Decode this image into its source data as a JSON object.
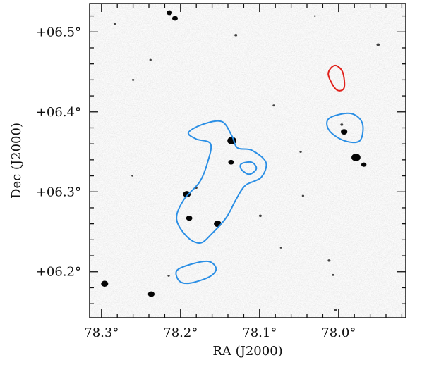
{
  "chart_data": {
    "type": "astronomical-image",
    "xlabel": "RA (J2000)",
    "ylabel": "Dec (J2000)",
    "xlim": [
      78.315,
      77.915
    ],
    "ylim": [
      0.1425,
      0.5355
    ],
    "x_ticks": [
      {
        "value": 78.3,
        "label": "78.3°"
      },
      {
        "value": 78.2,
        "label": "78.2°"
      },
      {
        "value": 78.1,
        "label": "78.1°"
      },
      {
        "value": 78.0,
        "label": "78.0°"
      }
    ],
    "y_ticks": [
      {
        "value": 0.2,
        "label": "+06.2°"
      },
      {
        "value": 0.3,
        "label": "+06.3°"
      },
      {
        "value": 0.4,
        "label": "+06.4°"
      },
      {
        "value": 0.5,
        "label": "+06.5°"
      }
    ],
    "colors": {
      "contour_blue": "#2b8fe5",
      "contour_red": "#e0201a",
      "source": "#050505",
      "background": "#e9e9e9"
    },
    "contours": [
      {
        "color": "blue",
        "points": [
          [
            78.173,
            0.384
          ],
          [
            78.148,
            0.388
          ],
          [
            78.135,
            0.37
          ],
          [
            78.128,
            0.355
          ],
          [
            78.11,
            0.352
          ],
          [
            78.092,
            0.337
          ],
          [
            78.098,
            0.318
          ],
          [
            78.118,
            0.308
          ],
          [
            78.13,
            0.29
          ],
          [
            78.142,
            0.268
          ],
          [
            78.16,
            0.248
          ],
          [
            78.175,
            0.236
          ],
          [
            78.192,
            0.244
          ],
          [
            78.205,
            0.266
          ],
          [
            78.196,
            0.29
          ],
          [
            78.176,
            0.312
          ],
          [
            78.166,
            0.336
          ],
          [
            78.162,
            0.36
          ],
          [
            78.18,
            0.366
          ],
          [
            78.19,
            0.374
          ]
        ]
      },
      {
        "color": "blue",
        "points": [
          [
            78.123,
            0.335
          ],
          [
            78.11,
            0.337
          ],
          [
            78.104,
            0.329
          ],
          [
            78.113,
            0.322
          ],
          [
            78.123,
            0.328
          ]
        ]
      },
      {
        "color": "blue",
        "points": [
          [
            78.187,
            0.186
          ],
          [
            78.163,
            0.194
          ],
          [
            78.155,
            0.204
          ],
          [
            78.165,
            0.213
          ],
          [
            78.188,
            0.209
          ],
          [
            78.205,
            0.201
          ],
          [
            78.201,
            0.188
          ]
        ]
      },
      {
        "color": "blue",
        "points": [
          [
            78.012,
            0.392
          ],
          [
            77.985,
            0.398
          ],
          [
            77.97,
            0.386
          ],
          [
            77.973,
            0.364
          ],
          [
            77.993,
            0.364
          ],
          [
            78.012,
            0.377
          ]
        ]
      },
      {
        "color": "red",
        "points": [
          [
            78.005,
            0.458
          ],
          [
            77.995,
            0.45
          ],
          [
            77.993,
            0.43
          ],
          [
            78.003,
            0.428
          ],
          [
            78.013,
            0.447
          ]
        ]
      }
    ],
    "sources": [
      {
        "ra": 78.296,
        "dec": 0.185,
        "size": 1.5
      },
      {
        "ra": 78.237,
        "dec": 0.172,
        "size": 1.4
      },
      {
        "ra": 78.214,
        "dec": 0.524,
        "size": 1.2
      },
      {
        "ra": 78.207,
        "dec": 0.517,
        "size": 1.2
      },
      {
        "ra": 78.192,
        "dec": 0.297,
        "size": 1.6
      },
      {
        "ra": 78.189,
        "dec": 0.267,
        "size": 1.3
      },
      {
        "ra": 78.153,
        "dec": 0.26,
        "size": 1.6
      },
      {
        "ra": 78.135,
        "dec": 0.364,
        "size": 1.9
      },
      {
        "ra": 78.136,
        "dec": 0.337,
        "size": 1.2
      },
      {
        "ra": 78.13,
        "dec": 0.496,
        "size": 0.6
      },
      {
        "ra": 77.996,
        "dec": 0.384,
        "size": 0.6
      },
      {
        "ra": 77.993,
        "dec": 0.375,
        "size": 1.4
      },
      {
        "ra": 77.978,
        "dec": 0.343,
        "size": 1.9
      },
      {
        "ra": 77.968,
        "dec": 0.334,
        "size": 1.1
      },
      {
        "ra": 77.95,
        "dec": 0.484,
        "size": 0.7
      },
      {
        "ra": 78.012,
        "dec": 0.214,
        "size": 0.6
      },
      {
        "ra": 78.004,
        "dec": 0.152,
        "size": 0.6
      },
      {
        "ra": 78.099,
        "dec": 0.27,
        "size": 0.6
      },
      {
        "ra": 78.045,
        "dec": 0.295,
        "size": 0.5
      },
      {
        "ra": 78.082,
        "dec": 0.408,
        "size": 0.5
      },
      {
        "ra": 78.26,
        "dec": 0.44,
        "size": 0.5
      },
      {
        "ra": 78.238,
        "dec": 0.465,
        "size": 0.5
      },
      {
        "ra": 78.048,
        "dec": 0.35,
        "size": 0.5
      },
      {
        "ra": 78.007,
        "dec": 0.196,
        "size": 0.5
      },
      {
        "ra": 78.215,
        "dec": 0.195,
        "size": 0.5
      },
      {
        "ra": 78.18,
        "dec": 0.305,
        "size": 0.5
      },
      {
        "ra": 78.073,
        "dec": 0.23,
        "size": 0.4
      },
      {
        "ra": 78.03,
        "dec": 0.52,
        "size": 0.4
      },
      {
        "ra": 78.283,
        "dec": 0.51,
        "size": 0.4
      },
      {
        "ra": 78.261,
        "dec": 0.32,
        "size": 0.4
      }
    ]
  }
}
